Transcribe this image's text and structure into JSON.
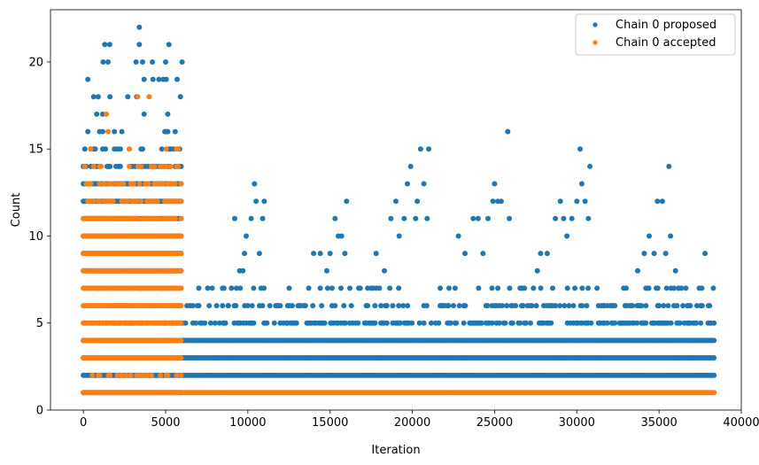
{
  "chart_data": {
    "type": "scatter",
    "title": "",
    "xlabel": "Iteration",
    "ylabel": "Count",
    "xlim": [
      -2000,
      40000
    ],
    "ylim": [
      0,
      23
    ],
    "xticks": [
      0,
      5000,
      10000,
      15000,
      20000,
      25000,
      30000,
      35000,
      40000
    ],
    "yticks": [
      0,
      5,
      10,
      15,
      20
    ],
    "legend_position": "top-right",
    "grid": false,
    "series": [
      {
        "name": "Chain 0 proposed",
        "color": "#1f77b4",
        "marker_size": 3,
        "bands": [
          {
            "y": 1,
            "start": 0,
            "end": 6000
          },
          {
            "y": 2,
            "start": 0,
            "end": 38400
          },
          {
            "y": 3,
            "start": 0,
            "end": 38400
          },
          {
            "y": 4,
            "start": 0,
            "end": 38400
          },
          {
            "y": 5,
            "start": 0,
            "end": 38400,
            "density": 0.5
          },
          {
            "y": 6,
            "start": 0,
            "end": 38400,
            "density": 0.3
          },
          {
            "y": 7,
            "start": 0,
            "end": 38400,
            "density": 0.12
          },
          {
            "y": 8,
            "start": 0,
            "end": 6000
          },
          {
            "y": 9,
            "start": 0,
            "end": 6000
          },
          {
            "y": 10,
            "start": 0,
            "end": 6000
          },
          {
            "y": 11,
            "start": 0,
            "end": 6000
          },
          {
            "y": 12,
            "start": 0,
            "end": 6000
          },
          {
            "y": 13,
            "start": 0,
            "end": 6000
          },
          {
            "y": 14,
            "start": 0,
            "end": 6000,
            "density": 0.45
          },
          {
            "y": 15,
            "start": 0,
            "end": 6000,
            "density": 0.3
          },
          {
            "y": 16,
            "start": 0,
            "end": 6000,
            "density": 0.18
          },
          {
            "y": 17,
            "start": 0,
            "end": 6000,
            "density": 0.1
          },
          {
            "y": 18,
            "start": 0,
            "end": 6000,
            "density": 0.06
          },
          {
            "y": 19,
            "start": 0,
            "end": 6000,
            "density": 0.04
          }
        ],
        "points": [
          [
            3400,
            22
          ],
          [
            3400,
            21
          ],
          [
            1300,
            21
          ],
          [
            1600,
            21
          ],
          [
            5200,
            21
          ],
          [
            1200,
            20
          ],
          [
            1500,
            20
          ],
          [
            3200,
            20
          ],
          [
            3600,
            20
          ],
          [
            4200,
            20
          ],
          [
            5000,
            20
          ],
          [
            6000,
            20
          ],
          [
            5700,
            19
          ],
          [
            5900,
            18
          ],
          [
            8100,
            6
          ],
          [
            8500,
            5
          ],
          [
            8800,
            6
          ],
          [
            9000,
            7
          ],
          [
            9300,
            7
          ],
          [
            9500,
            8
          ],
          [
            9700,
            8
          ],
          [
            9800,
            9
          ],
          [
            9200,
            11
          ],
          [
            9900,
            10
          ],
          [
            10200,
            11
          ],
          [
            10400,
            13
          ],
          [
            10500,
            12
          ],
          [
            10700,
            9
          ],
          [
            10900,
            11
          ],
          [
            11000,
            12
          ],
          [
            12400,
            5
          ],
          [
            12700,
            6
          ],
          [
            13200,
            6
          ],
          [
            13400,
            6
          ],
          [
            13700,
            7
          ],
          [
            14000,
            9
          ],
          [
            14400,
            9
          ],
          [
            14800,
            8
          ],
          [
            15000,
            9
          ],
          [
            15300,
            11
          ],
          [
            15500,
            10
          ],
          [
            15700,
            10
          ],
          [
            15900,
            9
          ],
          [
            16000,
            12
          ],
          [
            16200,
            7
          ],
          [
            16700,
            5
          ],
          [
            17200,
            6
          ],
          [
            17500,
            7
          ],
          [
            17800,
            9
          ],
          [
            18300,
            8
          ],
          [
            18700,
            11
          ],
          [
            19000,
            12
          ],
          [
            19200,
            10
          ],
          [
            19500,
            11
          ],
          [
            19700,
            13
          ],
          [
            19900,
            14
          ],
          [
            20200,
            11
          ],
          [
            20300,
            12
          ],
          [
            20500,
            15
          ],
          [
            20700,
            13
          ],
          [
            20900,
            11
          ],
          [
            21000,
            15
          ],
          [
            22200,
            6
          ],
          [
            22600,
            7
          ],
          [
            22800,
            10
          ],
          [
            23200,
            9
          ],
          [
            23700,
            11
          ],
          [
            24000,
            11
          ],
          [
            24300,
            9
          ],
          [
            24600,
            11
          ],
          [
            24900,
            12
          ],
          [
            25000,
            13
          ],
          [
            25200,
            12
          ],
          [
            25400,
            12
          ],
          [
            25800,
            16
          ],
          [
            25900,
            11
          ],
          [
            27000,
            6
          ],
          [
            27600,
            8
          ],
          [
            27800,
            9
          ],
          [
            28200,
            9
          ],
          [
            28700,
            11
          ],
          [
            29000,
            12
          ],
          [
            29200,
            11
          ],
          [
            29400,
            10
          ],
          [
            29700,
            11
          ],
          [
            30000,
            12
          ],
          [
            30200,
            15
          ],
          [
            30300,
            13
          ],
          [
            30500,
            12
          ],
          [
            30700,
            11
          ],
          [
            30800,
            14
          ],
          [
            32600,
            5
          ],
          [
            33000,
            7
          ],
          [
            33300,
            6
          ],
          [
            33700,
            8
          ],
          [
            34100,
            9
          ],
          [
            34400,
            10
          ],
          [
            34700,
            9
          ],
          [
            34900,
            12
          ],
          [
            35200,
            12
          ],
          [
            35400,
            9
          ],
          [
            35600,
            14
          ],
          [
            35700,
            10
          ],
          [
            36000,
            8
          ],
          [
            36200,
            7
          ],
          [
            37300,
            6
          ],
          [
            37600,
            7
          ],
          [
            37800,
            9
          ],
          [
            38000,
            6
          ],
          [
            38300,
            7
          ]
        ]
      },
      {
        "name": "Chain 0 accepted",
        "color": "#ff7f0e",
        "marker_size": 3,
        "bands": [
          {
            "y": 1,
            "start": 0,
            "end": 38400
          },
          {
            "y": 2,
            "start": 0,
            "end": 6000,
            "density": 0.3
          },
          {
            "y": 3,
            "start": 0,
            "end": 6000
          },
          {
            "y": 4,
            "start": 0,
            "end": 6000
          },
          {
            "y": 5,
            "start": 0,
            "end": 6000
          },
          {
            "y": 6,
            "start": 0,
            "end": 6000
          },
          {
            "y": 7,
            "start": 0,
            "end": 6000
          },
          {
            "y": 8,
            "start": 0,
            "end": 6000
          },
          {
            "y": 9,
            "start": 0,
            "end": 6000
          },
          {
            "y": 10,
            "start": 0,
            "end": 6000
          },
          {
            "y": 11,
            "start": 0,
            "end": 6000,
            "density": 0.8
          },
          {
            "y": 12,
            "start": 0,
            "end": 6000,
            "density": 0.6
          },
          {
            "y": 13,
            "start": 0,
            "end": 6000,
            "density": 0.4
          },
          {
            "y": 14,
            "start": 0,
            "end": 6000,
            "density": 0.2
          },
          {
            "y": 15,
            "start": 0,
            "end": 6000,
            "density": 0.06
          }
        ],
        "points": [
          [
            3300,
            18
          ],
          [
            4000,
            18
          ],
          [
            1400,
            17
          ],
          [
            1500,
            16
          ]
        ]
      }
    ]
  }
}
